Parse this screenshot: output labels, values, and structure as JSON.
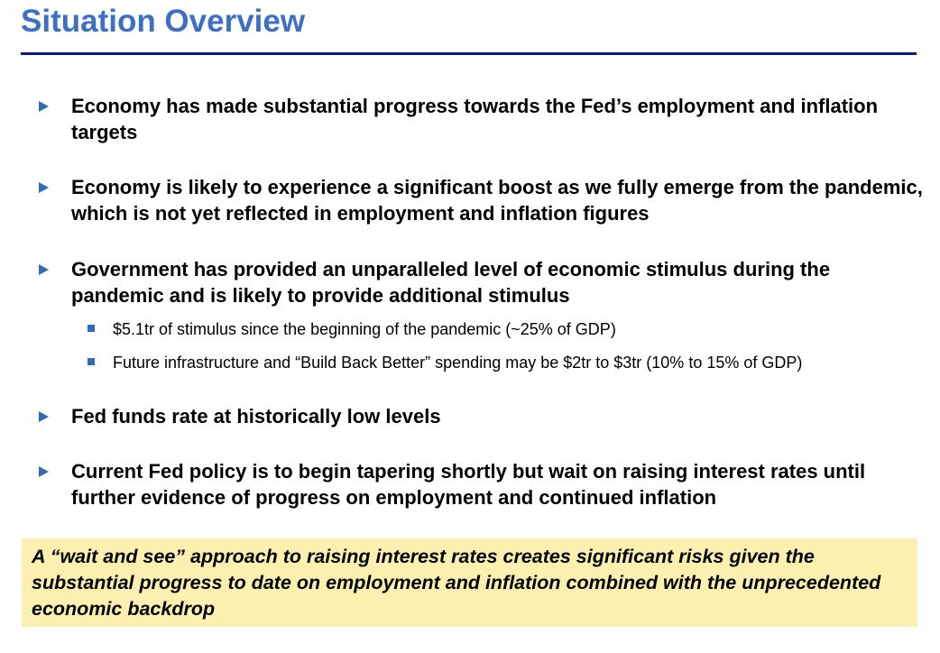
{
  "slide": {
    "title": "Situation Overview",
    "bullets": [
      {
        "text": "Economy has made substantial progress towards the Fed’s employment and inflation targets"
      },
      {
        "text": "Economy is likely to experience a significant boost as we fully emerge from the pandemic, which is not yet reflected in employment and inflation figures"
      },
      {
        "text": "Government has provided an unparalleled level of economic stimulus during the pandemic and is likely to provide additional stimulus",
        "sub_items": [
          "$5.1tr of stimulus since the beginning of the pandemic (~25% of GDP)",
          "Future infrastructure and “Build Back Better” spending may be $2tr to $3tr (10% to 15% of GDP)"
        ]
      },
      {
        "text": "Fed funds rate at historically low levels"
      },
      {
        "text": "Current Fed policy is to begin tapering shortly but wait on raising interest rates until further evidence of progress on employment and continued inflation"
      }
    ],
    "callout": "A “wait and see” approach to raising interest rates creates significant risks given the substantial progress to date on employment and inflation combined with the unprecedented economic backdrop"
  },
  "colors": {
    "title": "#3d6fc2",
    "rule": "#0b1b8f",
    "bullet_marker": "#2e6bb8",
    "callout_background": "#fbf0b0"
  },
  "icons": {
    "bullet_marker": "arrow-icon",
    "sub_bullet_marker": "square-icon"
  }
}
